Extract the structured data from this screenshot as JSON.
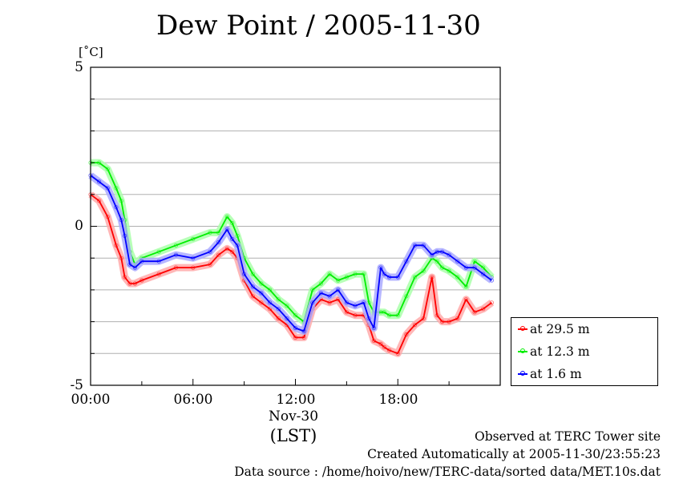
{
  "title": "Dew Point / 2005-11-30",
  "unit_label": "[˚C]",
  "x_date_label": "Nov-30",
  "x_axis_label": "(LST)",
  "footer": {
    "line1": "Observed at TERC Tower site",
    "line2": "Created Automatically at 2005-11-30/23:55:23",
    "line3": "Data source : /home/hoivo/new/TERC-data/sorted  data/MET.10s.dat"
  },
  "chart_data": {
    "type": "line",
    "title": "Dew Point / 2005-11-30",
    "ylabel": "[˚C]",
    "xlabel": "(LST)",
    "xlim": [
      0,
      24
    ],
    "ylim": [
      -5,
      5
    ],
    "x_tick_labels": [
      "00:00",
      "06:00",
      "12:00",
      "18:00"
    ],
    "y_tick_labels": [
      "5",
      "0",
      "-5"
    ],
    "grid": true,
    "legend_position": "bottom-right outside",
    "x": [
      0,
      0.5,
      1,
      1.5,
      1.8,
      2,
      2.3,
      2.6,
      3,
      4,
      5,
      6,
      7,
      7.5,
      8,
      8.3,
      8.6,
      9,
      9.5,
      10,
      10.5,
      11,
      11.5,
      12,
      12.5,
      13,
      13.5,
      14,
      14.5,
      15,
      15.5,
      16,
      16.3,
      16.6,
      17,
      17.2,
      17.5,
      18,
      18.5,
      19,
      19.5,
      20,
      20.3,
      20.6,
      21,
      21.5,
      22,
      22.5,
      23,
      23.5
    ],
    "series": [
      {
        "name": "at 29.5 m",
        "color": "#ff0000",
        "values": [
          1.0,
          0.8,
          0.3,
          -0.6,
          -1.0,
          -1.6,
          -1.8,
          -1.8,
          -1.7,
          -1.5,
          -1.3,
          -1.3,
          -1.2,
          -0.9,
          -0.7,
          -0.8,
          -1.0,
          -1.7,
          -2.2,
          -2.4,
          -2.6,
          -2.9,
          -3.1,
          -3.5,
          -3.5,
          -2.6,
          -2.3,
          -2.4,
          -2.3,
          -2.7,
          -2.8,
          -2.8,
          -3.1,
          -3.6,
          -3.7,
          -3.8,
          -3.9,
          -4.0,
          -3.4,
          -3.1,
          -2.9,
          -1.6,
          -2.8,
          -3.0,
          -3.0,
          -2.9,
          -2.3,
          -2.7,
          -2.6,
          -2.4
        ]
      },
      {
        "name": "at 12.3 m",
        "color": "#00ee00",
        "values": [
          2.0,
          2.0,
          1.8,
          1.2,
          0.8,
          0.2,
          -0.8,
          -1.2,
          -1.0,
          -0.8,
          -0.6,
          -0.4,
          -0.2,
          -0.2,
          0.3,
          0.1,
          -0.3,
          -1.0,
          -1.5,
          -1.8,
          -2.0,
          -2.3,
          -2.5,
          -2.8,
          -3.0,
          -2.0,
          -1.8,
          -1.5,
          -1.7,
          -1.6,
          -1.5,
          -1.5,
          -2.4,
          -2.7,
          -2.7,
          -2.7,
          -2.8,
          -2.8,
          -2.2,
          -1.6,
          -1.4,
          -1.0,
          -1.1,
          -1.3,
          -1.4,
          -1.6,
          -1.9,
          -1.1,
          -1.3,
          -1.6
        ]
      },
      {
        "name": "at 1.6 m",
        "color": "#0000ff",
        "values": [
          1.6,
          1.4,
          1.2,
          0.6,
          0.2,
          -0.3,
          -1.2,
          -1.3,
          -1.1,
          -1.1,
          -0.9,
          -1.0,
          -0.8,
          -0.5,
          -0.1,
          -0.4,
          -0.6,
          -1.5,
          -1.9,
          -2.1,
          -2.4,
          -2.6,
          -2.9,
          -3.2,
          -3.3,
          -2.4,
          -2.1,
          -2.2,
          -2.0,
          -2.4,
          -2.5,
          -2.4,
          -2.9,
          -3.2,
          -1.3,
          -1.5,
          -1.6,
          -1.6,
          -1.1,
          -0.6,
          -0.6,
          -0.9,
          -0.8,
          -0.8,
          -0.9,
          -1.1,
          -1.3,
          -1.3,
          -1.5,
          -1.7
        ]
      }
    ]
  }
}
